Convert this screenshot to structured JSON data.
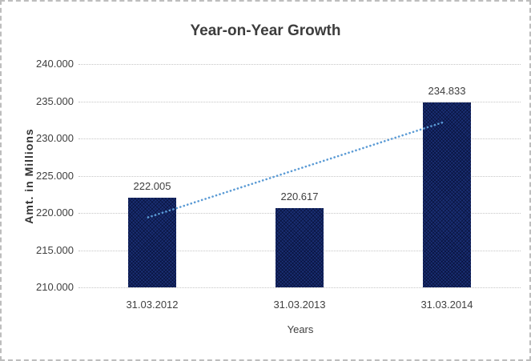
{
  "window": {
    "background": "#ffffff",
    "border_color": "#bdbdbd"
  },
  "chart_data": {
    "type": "bar",
    "title": "Year-on-Year Growth",
    "xlabel": "Years",
    "ylabel": "Amt. in Millions",
    "categories": [
      "31.03.2012",
      "31.03.2013",
      "31.03.2014"
    ],
    "values": [
      222.005,
      220.617,
      234.833
    ],
    "data_labels": [
      "222.005",
      "220.617",
      "234.833"
    ],
    "ylim": [
      210,
      240
    ],
    "ytick_step": 5,
    "ytick_labels": [
      "210.000",
      "215.000",
      "220.000",
      "225.000",
      "230.000",
      "235.000",
      "240.000"
    ],
    "grid": true,
    "legend": "none",
    "trendline": {
      "type": "linear",
      "style": "dotted",
      "color": "#5B9BD5",
      "start_value": 219.404,
      "end_value": 232.232
    },
    "bar_color": "#1a2f74",
    "bar_pattern": "crosshatch",
    "gridline_color": "#c6c6c6",
    "text_color": "#404040",
    "title_color": "#3d3d3d"
  }
}
